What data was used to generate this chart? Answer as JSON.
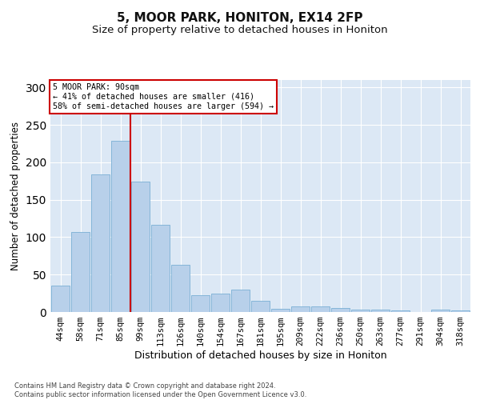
{
  "title1": "5, MOOR PARK, HONITON, EX14 2FP",
  "title2": "Size of property relative to detached houses in Honiton",
  "xlabel": "Distribution of detached houses by size in Honiton",
  "ylabel": "Number of detached properties",
  "categories": [
    "44sqm",
    "58sqm",
    "71sqm",
    "85sqm",
    "99sqm",
    "113sqm",
    "126sqm",
    "140sqm",
    "154sqm",
    "167sqm",
    "181sqm",
    "195sqm",
    "209sqm",
    "222sqm",
    "236sqm",
    "250sqm",
    "263sqm",
    "277sqm",
    "291sqm",
    "304sqm",
    "318sqm"
  ],
  "values": [
    35,
    107,
    184,
    229,
    174,
    116,
    63,
    22,
    25,
    30,
    15,
    4,
    8,
    8,
    5,
    3,
    3,
    2,
    0,
    3,
    2
  ],
  "bar_color": "#b8d0ea",
  "bar_edge_color": "#7aafd4",
  "vline_color": "#cc0000",
  "vline_pos": 3.5,
  "annotation_text": "5 MOOR PARK: 90sqm\n← 41% of detached houses are smaller (416)\n58% of semi-detached houses are larger (594) →",
  "annotation_box_color": "#ffffff",
  "annotation_box_edge": "#cc0000",
  "footer": "Contains HM Land Registry data © Crown copyright and database right 2024.\nContains public sector information licensed under the Open Government Licence v3.0.",
  "ylim": [
    0,
    310
  ],
  "plot_bg": "#dce8f5",
  "title1_fontsize": 11,
  "title2_fontsize": 9.5,
  "tick_fontsize": 7.5,
  "ylabel_fontsize": 8.5,
  "xlabel_fontsize": 9
}
